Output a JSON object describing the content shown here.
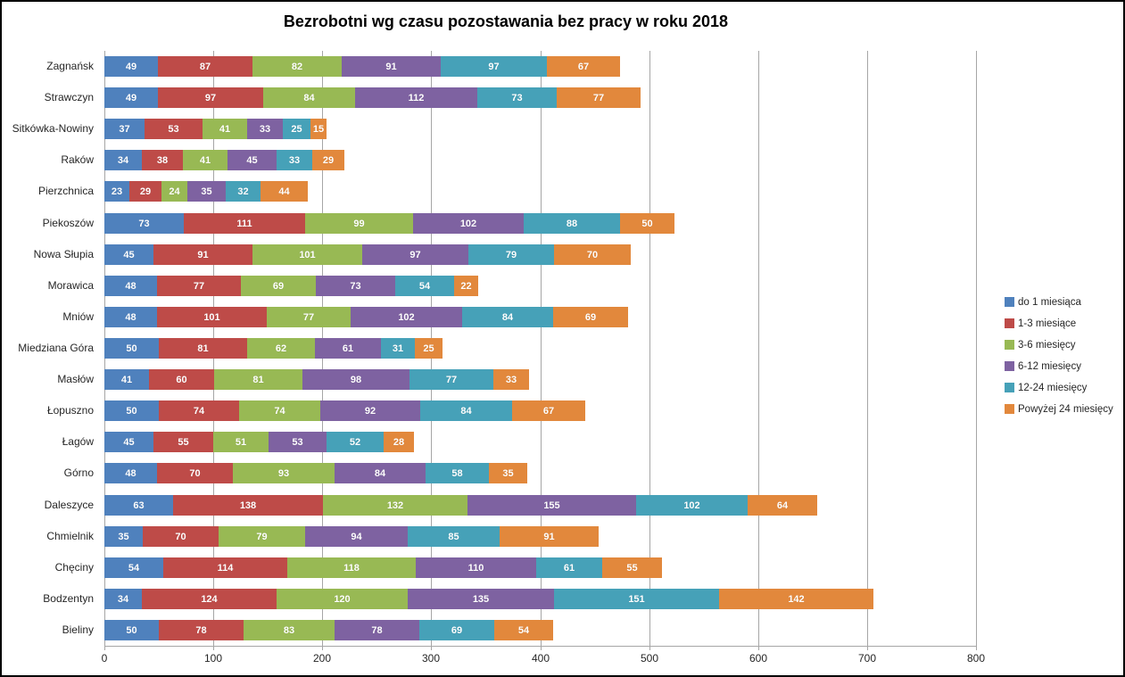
{
  "chart_data": {
    "type": "bar",
    "orientation": "horizontal",
    "stacked": true,
    "title": "Bezrobotni wg czasu pozostawania bez pracy w roku 2018",
    "categories": [
      "Zagnańsk",
      "Strawczyn",
      "Sitkówka-Nowiny",
      "Raków",
      "Pierzchnica",
      "Piekoszów",
      "Nowa Słupia",
      "Morawica",
      "Mniów",
      "Miedziana Góra",
      "Masłów",
      "Łopuszno",
      "Łagów",
      "Górno",
      "Daleszyce",
      "Chmielnik",
      "Chęciny",
      "Bodzentyn",
      "Bieliny"
    ],
    "series": [
      {
        "name": "do 1 miesiąca",
        "color": "#4F81BD",
        "values": [
          49,
          49,
          37,
          34,
          23,
          73,
          45,
          48,
          48,
          50,
          41,
          50,
          45,
          48,
          63,
          35,
          54,
          34,
          50
        ]
      },
      {
        "name": "1-3 miesiące",
        "color": "#BE4B48",
        "values": [
          87,
          97,
          53,
          38,
          29,
          111,
          91,
          77,
          101,
          81,
          60,
          74,
          55,
          70,
          138,
          70,
          114,
          124,
          78
        ]
      },
      {
        "name": "3-6 miesięcy",
        "color": "#98B954",
        "values": [
          82,
          84,
          41,
          41,
          24,
          99,
          101,
          69,
          77,
          62,
          81,
          74,
          51,
          93,
          132,
          79,
          118,
          120,
          83
        ]
      },
      {
        "name": "6-12 miesięcy",
        "color": "#7E62A1",
        "values": [
          91,
          112,
          33,
          45,
          35,
          102,
          97,
          73,
          102,
          61,
          98,
          92,
          53,
          84,
          155,
          94,
          110,
          135,
          78
        ]
      },
      {
        "name": "12-24 miesięcy",
        "color": "#46A1B8",
        "values": [
          97,
          73,
          25,
          33,
          32,
          88,
          79,
          54,
          84,
          31,
          77,
          84,
          52,
          58,
          102,
          85,
          61,
          151,
          69
        ]
      },
      {
        "name": "Powyżej 24 miesięcy",
        "color": "#E2883C",
        "values": [
          67,
          77,
          15,
          29,
          44,
          50,
          70,
          22,
          69,
          25,
          33,
          67,
          28,
          35,
          64,
          91,
          55,
          142,
          54
        ]
      }
    ],
    "x_axis": {
      "min": 0,
      "max": 800,
      "step": 100,
      "tick_labels": [
        "0",
        "100",
        "200",
        "300",
        "400",
        "500",
        "600",
        "700",
        "800"
      ]
    },
    "grid": "vertical",
    "legend_position": "right",
    "value_labels": "inside"
  },
  "style": {
    "grid_color": "#A6A6A6",
    "axis_color": "#A6A6A6",
    "value_label_color": "#FFFFFF",
    "text_color": "#262626",
    "background": "#FFFFFF",
    "border_color": "#000000"
  }
}
